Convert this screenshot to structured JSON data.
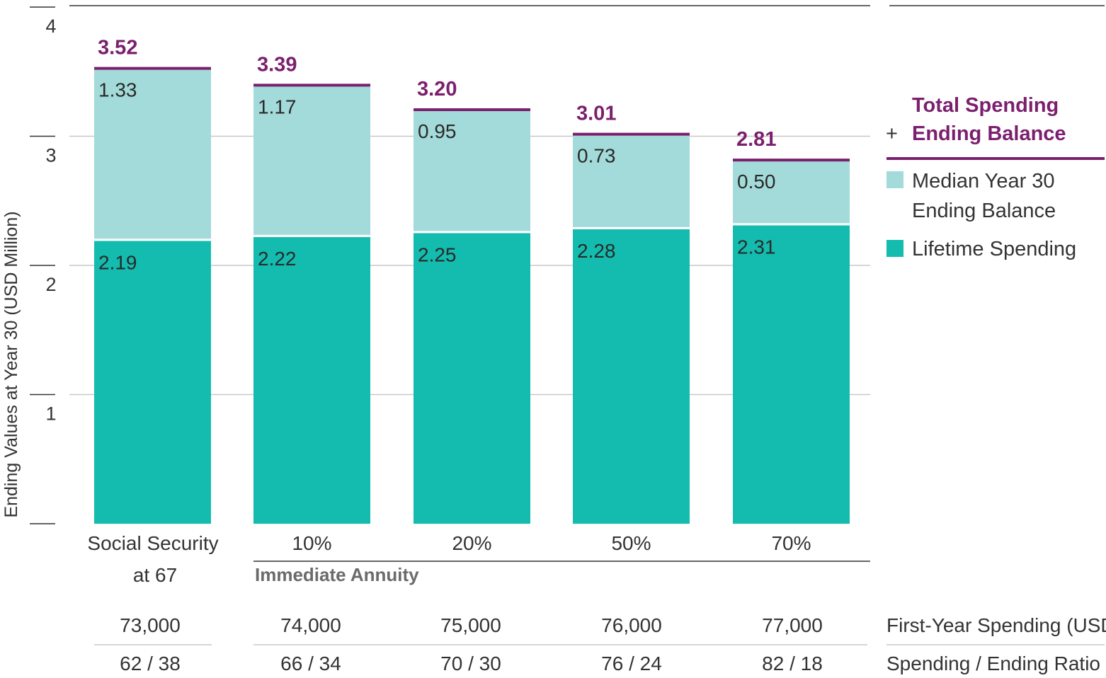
{
  "chart_data": {
    "type": "bar",
    "stacked": true,
    "ylabel": "Ending Values at Year 30 (USD Million)",
    "ylim": [
      0,
      4
    ],
    "yticks": [
      1,
      2,
      3,
      4
    ],
    "categories": [
      "Social Security at 67",
      "10%",
      "20%",
      "50%",
      "70%"
    ],
    "group_label": "Immediate Annuity",
    "series": [
      {
        "name": "Lifetime Spending",
        "color": "#13bcae",
        "values": [
          2.19,
          2.22,
          2.25,
          2.28,
          2.31
        ],
        "labels": [
          "2.19",
          "2.22",
          "2.25",
          "2.28",
          "2.31"
        ]
      },
      {
        "name": "Median Year 30 Ending Balance",
        "color": "#a2dbd9",
        "values": [
          1.33,
          1.17,
          0.95,
          0.73,
          0.5
        ],
        "labels": [
          "1.33",
          "1.17",
          "0.95",
          "0.73",
          "0.50"
        ]
      }
    ],
    "totals": {
      "name": "Total Spending + Ending Balance",
      "color": "#7b1f6e",
      "values": [
        3.52,
        3.39,
        3.2,
        3.01,
        2.81
      ],
      "labels": [
        "3.52",
        "3.39",
        "3.20",
        "3.01",
        "2.81"
      ]
    },
    "legend": {
      "title_line1": "Total Spending",
      "title_line2": "Ending Balance",
      "plus_sign": "+",
      "balance_line1": "Median Year 30",
      "balance_line2": "Ending Balance",
      "spending": "Lifetime Spending"
    },
    "table": {
      "rows": [
        {
          "label": "First-Year Spending (USD)",
          "values": [
            "73,000",
            "74,000",
            "75,000",
            "76,000",
            "77,000"
          ]
        },
        {
          "label": "Spending / Ending Ratio",
          "values": [
            "62 / 38",
            "66 / 34",
            "70 / 30",
            "76 / 24",
            "82 / 18"
          ]
        }
      ]
    }
  }
}
